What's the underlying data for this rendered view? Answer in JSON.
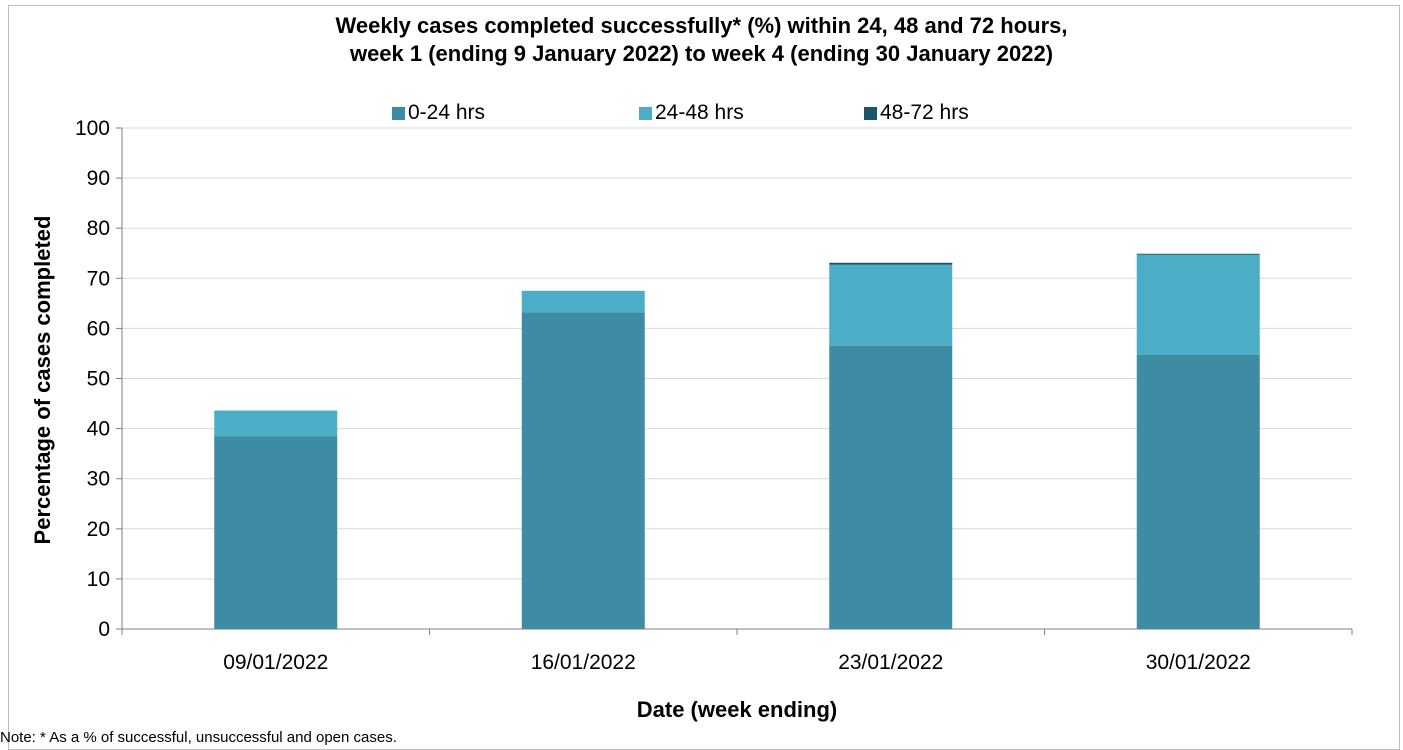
{
  "chart_data": {
    "type": "bar",
    "stacked": true,
    "title_line1": "Weekly cases completed successfully* (%) within 24, 48 and 72 hours,",
    "title_line2": "week 1 (ending 9 January 2022) to week 4 (ending 30 January 2022)",
    "xlabel": "Date (week ending)",
    "ylabel": "Percentage of cases completed",
    "ylim": [
      0,
      100
    ],
    "yticks": [
      0,
      10,
      20,
      30,
      40,
      50,
      60,
      70,
      80,
      90,
      100
    ],
    "categories": [
      "09/01/2022",
      "16/01/2022",
      "23/01/2022",
      "30/01/2022"
    ],
    "series": [
      {
        "name": "0-24 hrs",
        "color": "#3d8ca3",
        "values": [
          38.5,
          63.2,
          56.5,
          54.7
        ]
      },
      {
        "name": "24-48 hrs",
        "color": "#4badc6",
        "values": [
          5.1,
          4.3,
          16.2,
          20.0
        ]
      },
      {
        "name": "48-72 hrs",
        "color": "#1f5569",
        "values": [
          0.0,
          0.0,
          0.4,
          0.2
        ]
      }
    ],
    "grid": true,
    "legend_position": "top",
    "note": "Note: * As a % of successful, unsuccessful and open cases."
  }
}
